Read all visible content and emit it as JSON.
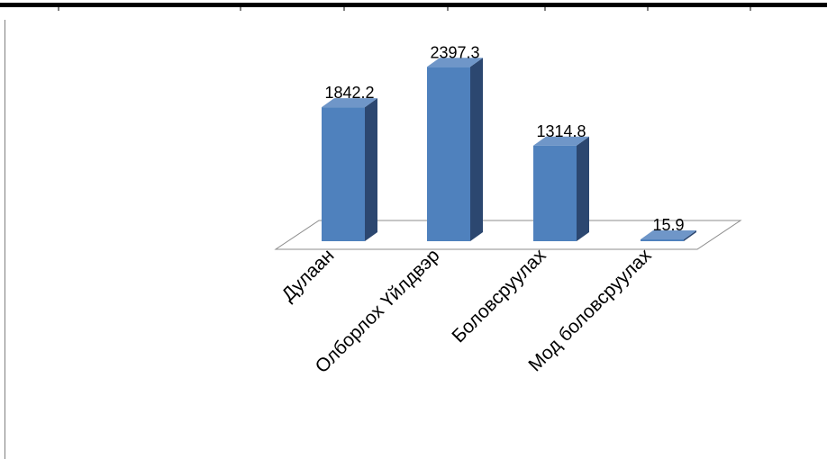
{
  "chart_data": {
    "type": "bar",
    "style": "3d-column",
    "categories": [
      "Дулаан",
      "Олборлох Үйлдвэр",
      "Боловсруулах",
      "Мод боловсруулах"
    ],
    "values": [
      1842.2,
      2397.3,
      1314.8,
      15.9
    ],
    "data_labels": [
      "1842.2",
      "2397.3",
      "1314.8",
      "15.9"
    ],
    "title": "",
    "xlabel": "",
    "ylabel": "",
    "ylim": [
      0,
      2500
    ],
    "grid": false,
    "legend": "none"
  },
  "colors": {
    "bar_front": "#4f81bd",
    "bar_side": "#2c4770",
    "bar_top": "#6f96c8",
    "floor_stroke": "#8c8c8c",
    "frame": "#7f7f7f"
  }
}
